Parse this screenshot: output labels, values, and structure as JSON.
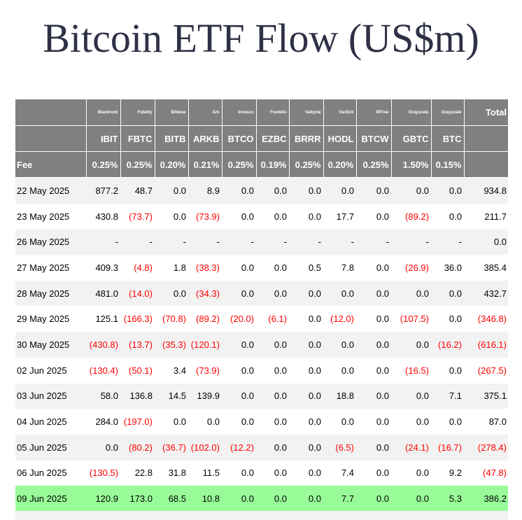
{
  "title": "Bitcoin ETF Flow (US$m)",
  "chart_data": {
    "type": "table",
    "title": "Bitcoin ETF Flow (US$m)",
    "issuers": [
      "",
      "Blackrock",
      "Fidelity",
      "Bitwise",
      "Ark",
      "Invesco",
      "Franklin",
      "Valkyrie",
      "VanEck",
      "WTree",
      "Grayscale",
      "Grayscale",
      "Total"
    ],
    "tickers": [
      "",
      "IBIT",
      "FBTC",
      "BITB",
      "ARKB",
      "BTCO",
      "EZBC",
      "BRRR",
      "HODL",
      "BTCW",
      "GBTC",
      "BTC",
      ""
    ],
    "fees": [
      "Fee",
      "0.25%",
      "0.25%",
      "0.20%",
      "0.21%",
      "0.25%",
      "0.19%",
      "0.25%",
      "0.20%",
      "0.25%",
      "1.50%",
      "0.15%",
      ""
    ],
    "rows": [
      [
        "22 May 2025",
        "877.2",
        "48.7",
        "0.0",
        "8.9",
        "0.0",
        "0.0",
        "0.0",
        "0.0",
        "0.0",
        "0.0",
        "0.0",
        "934.8"
      ],
      [
        "23 May 2025",
        "430.8",
        "(73.7)",
        "0.0",
        "(73.9)",
        "0.0",
        "0.0",
        "0.0",
        "17.7",
        "0.0",
        "(89.2)",
        "0.0",
        "211.7"
      ],
      [
        "26 May 2025",
        "-",
        "-",
        "-",
        "-",
        "-",
        "-",
        "-",
        "-",
        "-",
        "-",
        "-",
        "0.0"
      ],
      [
        "27 May 2025",
        "409.3",
        "(4.8)",
        "1.8",
        "(38.3)",
        "0.0",
        "0.0",
        "0.5",
        "7.8",
        "0.0",
        "(26.9)",
        "36.0",
        "385.4"
      ],
      [
        "28 May 2025",
        "481.0",
        "(14.0)",
        "0.0",
        "(34.3)",
        "0.0",
        "0.0",
        "0.0",
        "0.0",
        "0.0",
        "0.0",
        "0.0",
        "432.7"
      ],
      [
        "29 May 2025",
        "125.1",
        "(166.3)",
        "(70.8)",
        "(89.2)",
        "(20.0)",
        "(6.1)",
        "0.0",
        "(12.0)",
        "0.0",
        "(107.5)",
        "0.0",
        "(346.8)"
      ],
      [
        "30 May 2025",
        "(430.8)",
        "(13.7)",
        "(35.3)",
        "(120.1)",
        "0.0",
        "0.0",
        "0.0",
        "0.0",
        "0.0",
        "0.0",
        "(16.2)",
        "(616.1)"
      ],
      [
        "02 Jun 2025",
        "(130.4)",
        "(50.1)",
        "3.4",
        "(73.9)",
        "0.0",
        "0.0",
        "0.0",
        "0.0",
        "0.0",
        "(16.5)",
        "0.0",
        "(267.5)"
      ],
      [
        "03 Jun 2025",
        "58.0",
        "136.8",
        "14.5",
        "139.9",
        "0.0",
        "0.0",
        "0.0",
        "18.8",
        "0.0",
        "0.0",
        "7.1",
        "375.1"
      ],
      [
        "04 Jun 2025",
        "284.0",
        "(197.0)",
        "0.0",
        "0.0",
        "0.0",
        "0.0",
        "0.0",
        "0.0",
        "0.0",
        "0.0",
        "0.0",
        "87.0"
      ],
      [
        "05 Jun 2025",
        "0.0",
        "(80.2)",
        "(36.7)",
        "(102.0)",
        "(12.2)",
        "0.0",
        "0.0",
        "(6.5)",
        "0.0",
        "(24.1)",
        "(16.7)",
        "(278.4)"
      ],
      [
        "06 Jun 2025",
        "(130.5)",
        "22.8",
        "31.8",
        "11.5",
        "0.0",
        "0.0",
        "0.0",
        "7.4",
        "0.0",
        "0.0",
        "9.2",
        "(47.8)"
      ],
      [
        "09 Jun 2025",
        "120.9",
        "173.0",
        "68.5",
        "10.8",
        "0.0",
        "0.0",
        "0.0",
        "7.7",
        "0.0",
        "0.0",
        "5.3",
        "386.2"
      ]
    ],
    "highlighted_row": "09 Jun 2025",
    "colors": {
      "header_bg": "#808080",
      "header_text": "#ffffff",
      "negative_text": "#ff0000",
      "highlight_bg": "#98fb98",
      "stripe_bg": "#f2f2f2",
      "title_color": "#2e3146"
    }
  }
}
